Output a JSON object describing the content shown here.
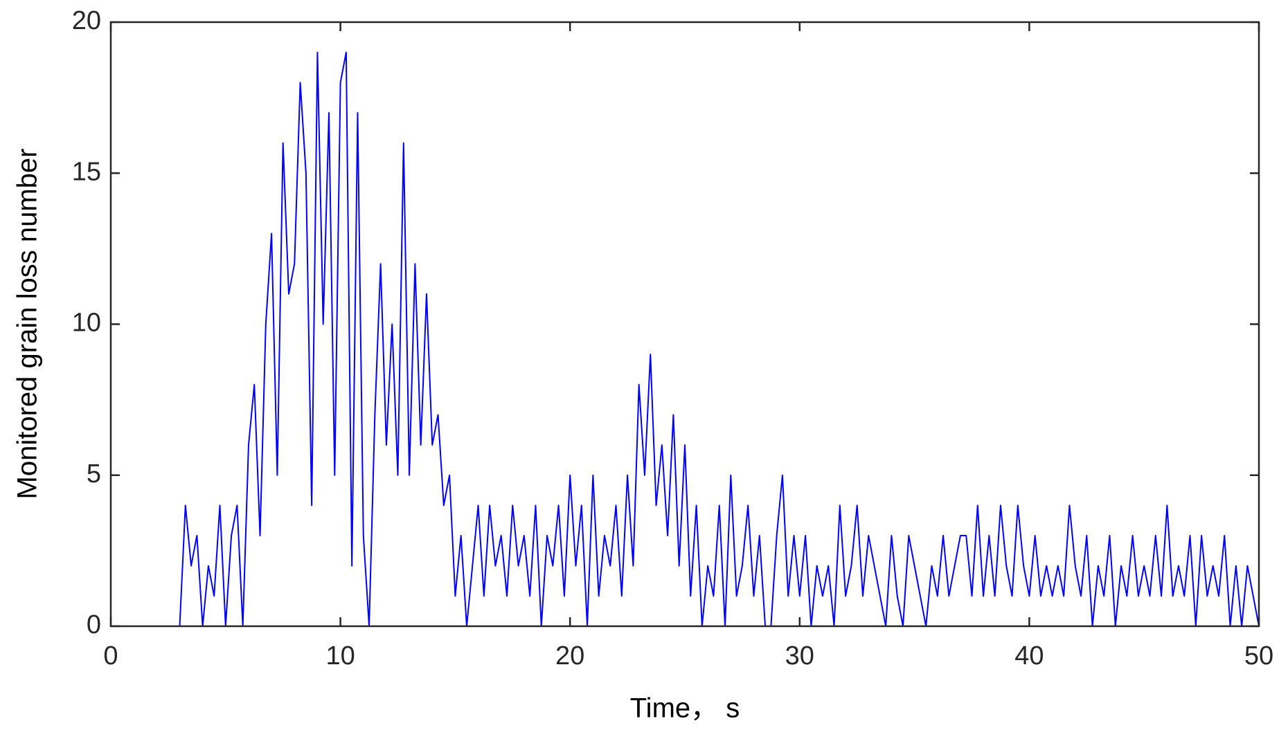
{
  "chart_data": {
    "type": "line",
    "xlabel": "Time， s",
    "ylabel": "Monitored grain loss number",
    "x": [
      0,
      0.25,
      0.5,
      0.75,
      1,
      1.25,
      1.5,
      1.75,
      2,
      2.25,
      2.5,
      2.75,
      3,
      3.25,
      3.5,
      3.75,
      4,
      4.25,
      4.5,
      4.75,
      5,
      5.25,
      5.5,
      5.75,
      6,
      6.25,
      6.5,
      6.75,
      7,
      7.25,
      7.5,
      7.75,
      8,
      8.25,
      8.5,
      8.75,
      9,
      9.25,
      9.5,
      9.75,
      10,
      10.25,
      10.5,
      10.75,
      11,
      11.25,
      11.5,
      11.75,
      12,
      12.25,
      12.5,
      12.75,
      13,
      13.25,
      13.5,
      13.75,
      14,
      14.25,
      14.5,
      14.75,
      15,
      15.25,
      15.5,
      15.75,
      16,
      16.25,
      16.5,
      16.75,
      17,
      17.25,
      17.5,
      17.75,
      18,
      18.25,
      18.5,
      18.75,
      19,
      19.25,
      19.5,
      19.75,
      20,
      20.25,
      20.5,
      20.75,
      21,
      21.25,
      21.5,
      21.75,
      22,
      22.25,
      22.5,
      22.75,
      23,
      23.25,
      23.5,
      23.75,
      24,
      24.25,
      24.5,
      24.75,
      25,
      25.25,
      25.5,
      25.75,
      26,
      26.25,
      26.5,
      26.75,
      27,
      27.25,
      27.5,
      27.75,
      28,
      28.25,
      28.5,
      28.75,
      29,
      29.25,
      29.5,
      29.75,
      30,
      30.25,
      30.5,
      30.75,
      31,
      31.25,
      31.5,
      31.75,
      32,
      32.25,
      32.5,
      32.75,
      33,
      33.25,
      33.5,
      33.75,
      34,
      34.25,
      34.5,
      34.75,
      35,
      35.25,
      35.5,
      35.75,
      36,
      36.25,
      36.5,
      36.75,
      37,
      37.25,
      37.5,
      37.75,
      38,
      38.25,
      38.5,
      38.75,
      39,
      39.25,
      39.5,
      39.75,
      40,
      40.25,
      40.5,
      40.75,
      41,
      41.25,
      41.5,
      41.75,
      42,
      42.25,
      42.5,
      42.75,
      43,
      43.25,
      43.5,
      43.75,
      44,
      44.25,
      44.5,
      44.75,
      45,
      45.25,
      45.5,
      45.75,
      46,
      46.25,
      46.5,
      46.75,
      47,
      47.25,
      47.5,
      47.75,
      48,
      48.25,
      48.5,
      48.75,
      49,
      49.25,
      49.5,
      49.75,
      50
    ],
    "series": [
      {
        "color": "#0000ff",
        "values": [
          0,
          0,
          0,
          0,
          0,
          0,
          0,
          0,
          0,
          0,
          0,
          0,
          0,
          4,
          2,
          3,
          0,
          2,
          1,
          4,
          0,
          3,
          4,
          0,
          6,
          8,
          3,
          10,
          13,
          5,
          16,
          11,
          12,
          18,
          15,
          4,
          19,
          10,
          17,
          5,
          18,
          19,
          2,
          17,
          3,
          0,
          7,
          12,
          6,
          10,
          5,
          16,
          5,
          12,
          6,
          11,
          6,
          7,
          4,
          5,
          1,
          3,
          0,
          2,
          4,
          1,
          4,
          2,
          3,
          1,
          4,
          2,
          3,
          1,
          4,
          0,
          3,
          2,
          4,
          1,
          5,
          2,
          4,
          0,
          5,
          1,
          3,
          2,
          4,
          1,
          5,
          2,
          8,
          5,
          9,
          4,
          6,
          3,
          7,
          2,
          6,
          1,
          4,
          0,
          2,
          1,
          4,
          0,
          5,
          1,
          2,
          4,
          1,
          3,
          0,
          0,
          3,
          5,
          1,
          3,
          1,
          3,
          0,
          2,
          1,
          2,
          0,
          4,
          1,
          2,
          4,
          1,
          3,
          2,
          1,
          0,
          3,
          1,
          0,
          3,
          2,
          1,
          0,
          2,
          1,
          3,
          1,
          2,
          3,
          3,
          1,
          4,
          1,
          3,
          1,
          4,
          2,
          1,
          4,
          2,
          1,
          3,
          1,
          2,
          1,
          2,
          1,
          4,
          2,
          1,
          3,
          0,
          2,
          1,
          3,
          0,
          2,
          1,
          3,
          1,
          2,
          1,
          3,
          1,
          4,
          1,
          2,
          1,
          3,
          0,
          3,
          1,
          2,
          1,
          3,
          0,
          2,
          0,
          2,
          1,
          0
        ]
      }
    ],
    "xlim": [
      0,
      50
    ],
    "xticks": [
      0,
      10,
      20,
      30,
      40,
      50
    ],
    "ylim": [
      0,
      20
    ],
    "yticks": [
      0,
      5,
      10,
      15,
      20
    ],
    "grid": false
  }
}
